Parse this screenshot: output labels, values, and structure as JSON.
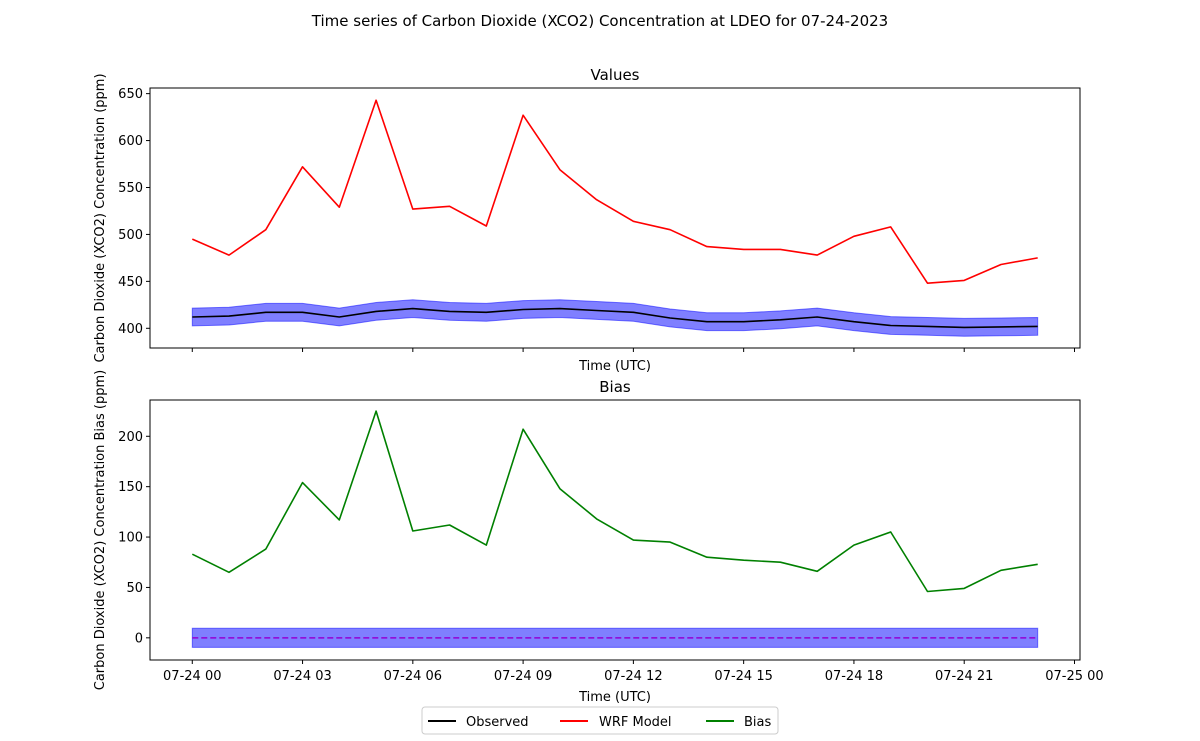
{
  "figure": {
    "title": "Time series of Carbon Dioxide (XCO2) Concentration at LDEO for 07-24-2023"
  },
  "colors": {
    "observed": "#000000",
    "model": "#ff0000",
    "bias": "#008000",
    "band_fill": "#0000ff",
    "zero_line": "#9400d3"
  },
  "legend": {
    "placement": "bottom-center",
    "items": [
      {
        "label": "Observed",
        "color": "#000000"
      },
      {
        "label": "WRF Model",
        "color": "#ff0000"
      },
      {
        "label": "Bias",
        "color": "#008000"
      }
    ]
  },
  "chart_data": [
    {
      "type": "line",
      "title": "Values",
      "xlabel": "Time (UTC)",
      "ylabel": "Carbon Dioxide (XCO2) Concentration (ppm)",
      "x": [
        "07-24 00:00",
        "07-24 01:00",
        "07-24 02:00",
        "07-24 03:00",
        "07-24 04:00",
        "07-24 05:00",
        "07-24 06:00",
        "07-24 07:00",
        "07-24 08:00",
        "07-24 09:00",
        "07-24 10:00",
        "07-24 11:00",
        "07-24 12:00",
        "07-24 13:00",
        "07-24 14:00",
        "07-24 15:00",
        "07-24 16:00",
        "07-24 17:00",
        "07-24 18:00",
        "07-24 19:00",
        "07-24 20:00",
        "07-24 21:00",
        "07-24 22:00",
        "07-24 23:00"
      ],
      "xlim": [
        "07-23 22:51",
        "07-25 00:09"
      ],
      "xticks": [
        "07-24 00",
        "07-24 03",
        "07-24 06",
        "07-24 09",
        "07-24 12",
        "07-24 15",
        "07-24 18",
        "07-24 21",
        "07-25 00"
      ],
      "xticks_labeled": false,
      "ylim": [
        379,
        656
      ],
      "yticks": [
        400,
        450,
        500,
        550,
        600,
        650
      ],
      "grid": false,
      "series": [
        {
          "name": "Observed",
          "key": "observed",
          "values": [
            412,
            413,
            417,
            417,
            412,
            418,
            421,
            418,
            417,
            420,
            421,
            419,
            417,
            411,
            407,
            407,
            409,
            412,
            407,
            403,
            402,
            401,
            401.5,
            402
          ]
        },
        {
          "name": "WRF Model",
          "key": "model",
          "values": [
            495,
            478,
            505,
            572,
            529,
            643,
            527,
            530,
            509,
            627,
            569,
            537,
            514,
            505,
            487,
            484,
            484,
            478,
            498,
            508,
            448,
            451,
            468,
            475
          ]
        }
      ],
      "band": {
        "of": "Observed",
        "half_width": 9.5
      }
    },
    {
      "type": "line",
      "title": "Bias",
      "xlabel": "Time (UTC)",
      "ylabel": "Carbon Dioxide (XCO2) Concentration Bias (ppm)",
      "x": [
        "07-24 00:00",
        "07-24 01:00",
        "07-24 02:00",
        "07-24 03:00",
        "07-24 04:00",
        "07-24 05:00",
        "07-24 06:00",
        "07-24 07:00",
        "07-24 08:00",
        "07-24 09:00",
        "07-24 10:00",
        "07-24 11:00",
        "07-24 12:00",
        "07-24 13:00",
        "07-24 14:00",
        "07-24 15:00",
        "07-24 16:00",
        "07-24 17:00",
        "07-24 18:00",
        "07-24 19:00",
        "07-24 20:00",
        "07-24 21:00",
        "07-24 22:00",
        "07-24 23:00"
      ],
      "xlim": [
        "07-23 22:51",
        "07-25 00:09"
      ],
      "xticks": [
        "07-24 00",
        "07-24 03",
        "07-24 06",
        "07-24 09",
        "07-24 12",
        "07-24 15",
        "07-24 18",
        "07-24 21",
        "07-25 00"
      ],
      "xticks_labeled": true,
      "ylim": [
        -22,
        236
      ],
      "yticks": [
        0,
        50,
        100,
        150,
        200
      ],
      "grid": false,
      "series": [
        {
          "name": "Bias",
          "key": "bias",
          "values": [
            83,
            65,
            88,
            154,
            117,
            225,
            106,
            112,
            92,
            207,
            148,
            118,
            97,
            95,
            80,
            77,
            75,
            66,
            92,
            105,
            46,
            49,
            67,
            73
          ]
        }
      ],
      "zero_line": {
        "y": 0,
        "style": "dashed"
      },
      "band": {
        "center": 0,
        "half_width": 9.5
      }
    }
  ]
}
